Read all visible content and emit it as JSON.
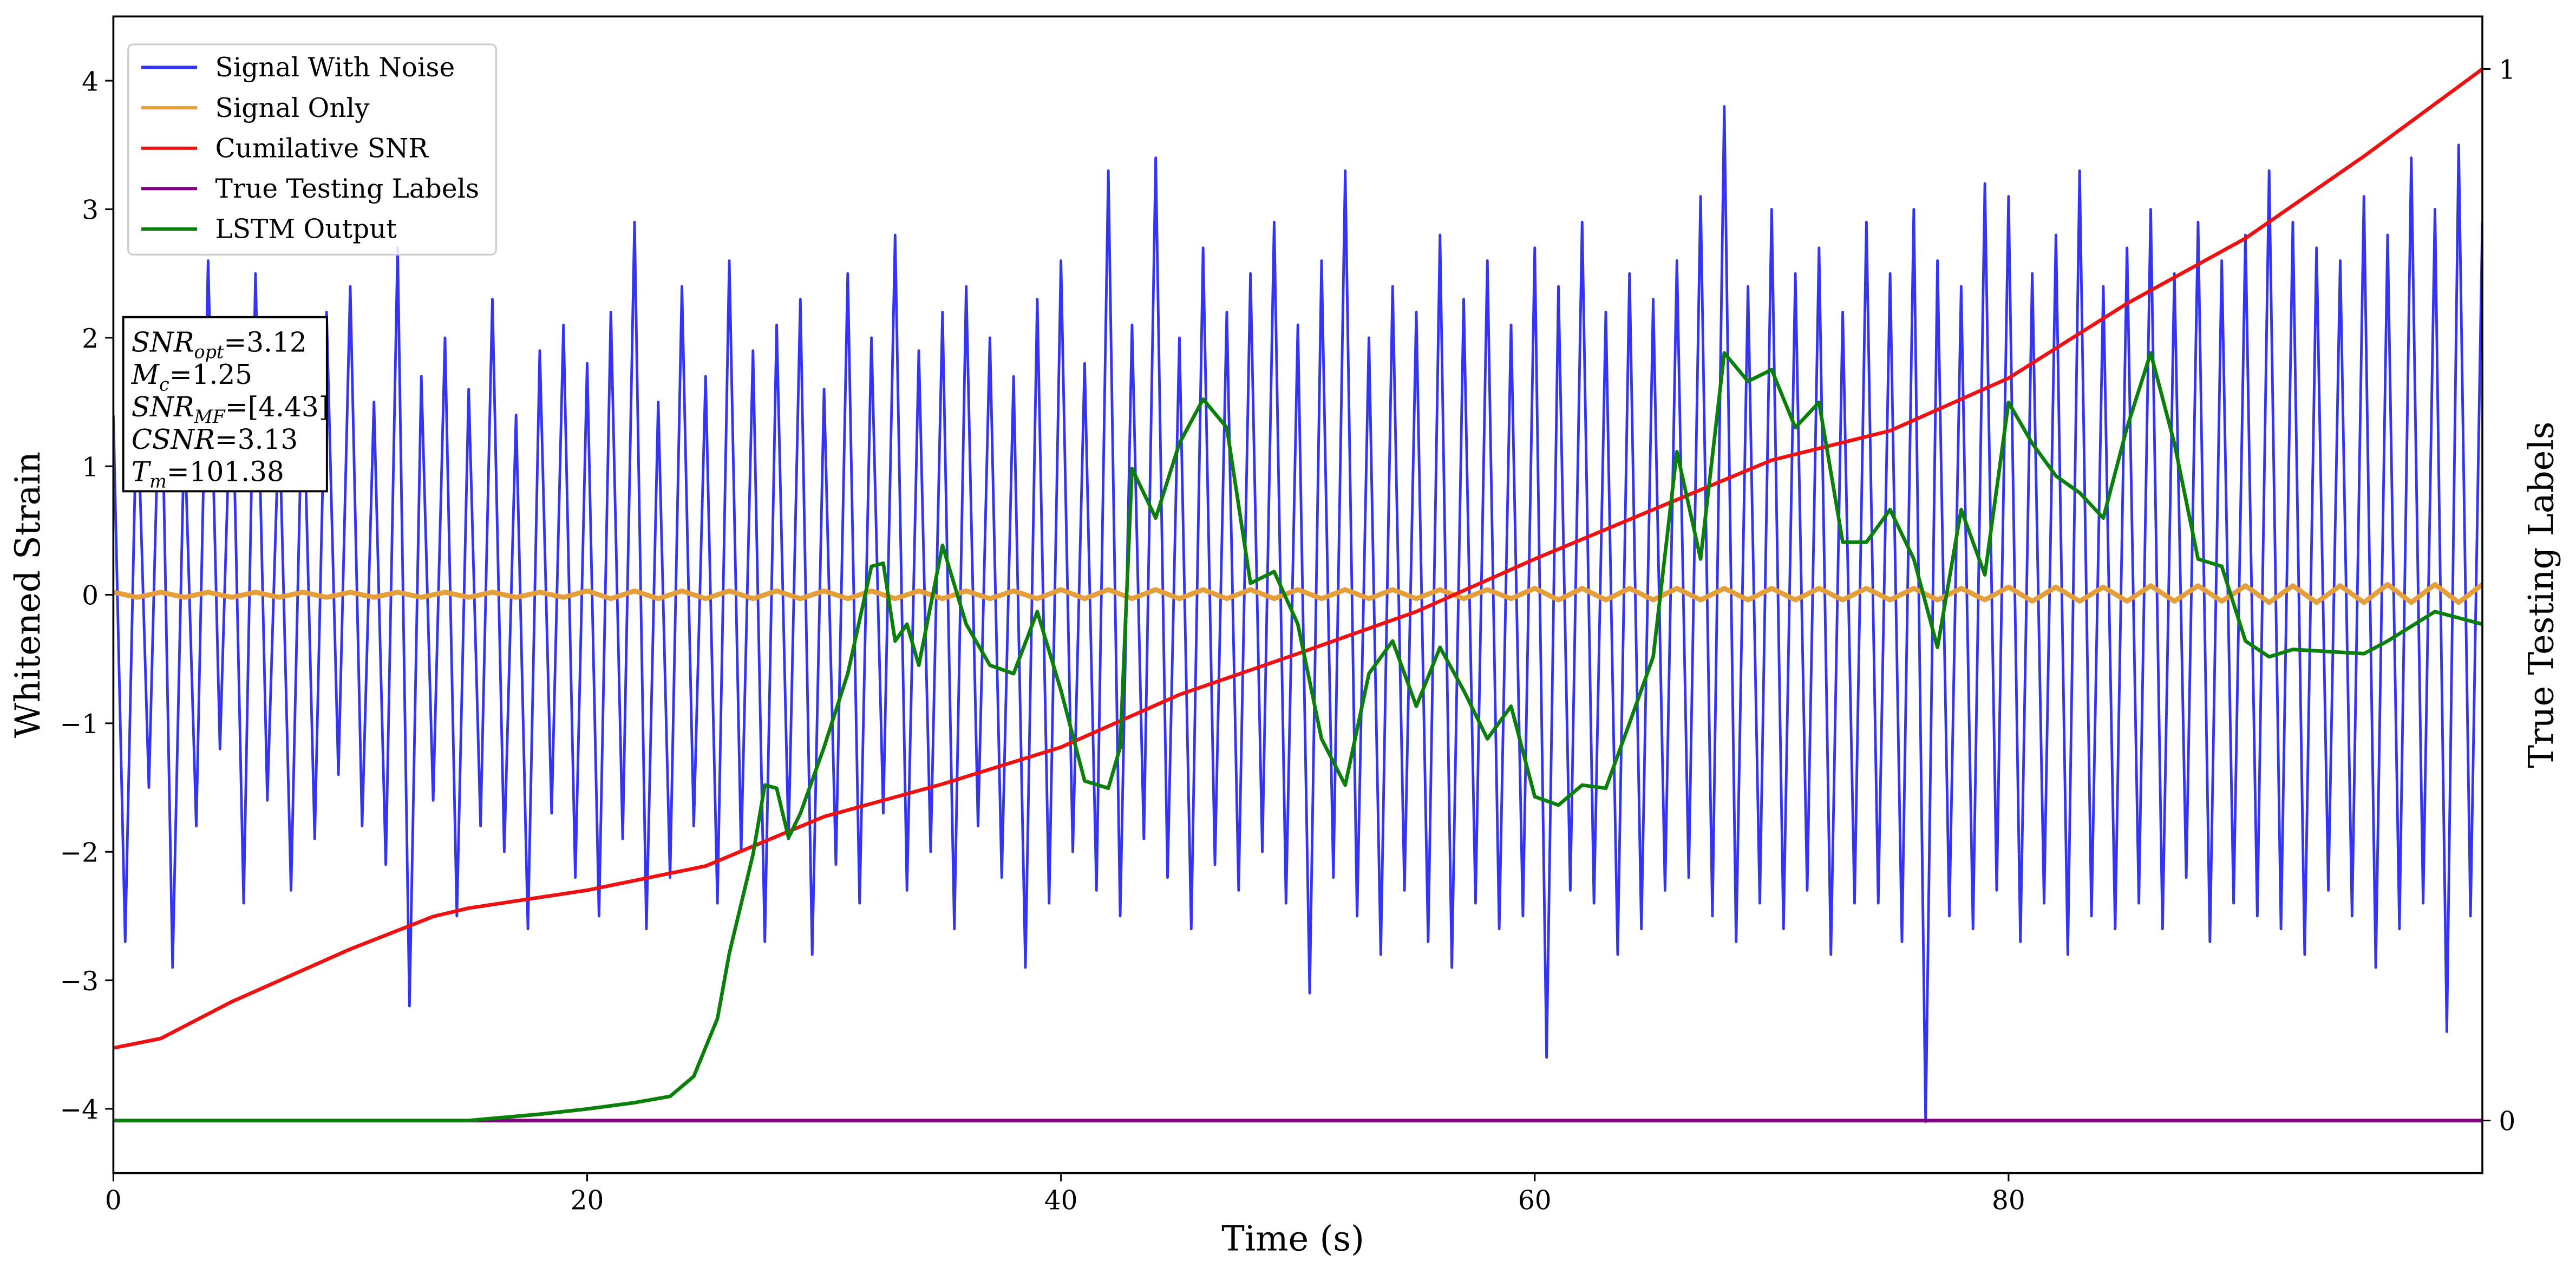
{
  "chart_data": {
    "type": "line",
    "xlabel": "Time (s)",
    "ylabel": "Whitened Strain",
    "y2label": "True Testing Labels",
    "xlim": [
      0,
      100
    ],
    "xticks": [
      0,
      20,
      40,
      60,
      80
    ],
    "ylim": [
      -4.5,
      4.5
    ],
    "yticks": [
      {
        "value": -4,
        "label": "−4"
      },
      {
        "value": -3,
        "label": "−3"
      },
      {
        "value": -2,
        "label": "−2"
      },
      {
        "value": -1,
        "label": "−1"
      },
      0,
      1,
      2,
      3,
      4
    ],
    "y2lim": [
      -0.05,
      1.05
    ],
    "y2ticks": [
      0,
      1
    ],
    "legend": "upper left",
    "annotation": {
      "lines": [
        [
          "SNR",
          "opt",
          "=3.12"
        ],
        [
          "M",
          "c",
          "=1.25"
        ],
        [
          "SNR",
          "MF",
          "=[4.43]"
        ],
        [
          "CSNR",
          "",
          "=3.13"
        ],
        [
          "T",
          "m",
          "=101.38"
        ]
      ]
    },
    "series": [
      {
        "name": "Signal With Noise",
        "color": "#3434f4",
        "width": 1.6,
        "x": [
          0,
          0.5,
          1,
          1.5,
          2,
          2.5,
          3,
          3.5,
          4,
          4.5,
          5,
          5.5,
          6,
          6.5,
          7,
          7.5,
          8,
          8.5,
          9,
          9.5,
          10,
          10.5,
          11,
          11.5,
          12,
          12.5,
          13,
          13.5,
          14,
          14.5,
          15,
          15.5,
          16,
          16.5,
          17,
          17.5,
          18,
          18.5,
          19,
          19.5,
          20,
          20.5,
          21,
          21.5,
          22,
          22.5,
          23,
          23.5,
          24,
          24.5,
          25,
          25.5,
          26,
          26.5,
          27,
          27.5,
          28,
          28.5,
          29,
          29.5,
          30,
          30.5,
          31,
          31.5,
          32,
          32.5,
          33,
          33.5,
          34,
          34.5,
          35,
          35.5,
          36,
          36.5,
          37,
          37.5,
          38,
          38.5,
          39,
          39.5,
          40,
          40.5,
          41,
          41.5,
          42,
          42.5,
          43,
          43.5,
          44,
          44.5,
          45,
          45.5,
          46,
          46.5,
          47,
          47.5,
          48,
          48.5,
          49,
          49.5,
          50,
          50.5,
          51,
          51.5,
          52,
          52.5,
          53,
          53.5,
          54,
          54.5,
          55,
          55.5,
          56,
          56.5,
          57,
          57.5,
          58,
          58.5,
          59,
          59.5,
          60,
          60.5,
          61,
          61.5,
          62,
          62.5,
          63,
          63.5,
          64,
          64.5,
          65,
          65.5,
          66,
          66.5,
          67,
          67.5,
          68,
          68.5,
          69,
          69.5,
          70,
          70.5,
          71,
          71.5,
          72,
          72.5,
          73,
          73.5,
          74,
          74.5,
          75,
          75.5,
          76,
          76.5,
          77,
          77.5,
          78,
          78.5,
          79,
          79.5,
          80,
          80.5,
          81,
          81.5,
          82,
          82.5,
          83,
          83.5,
          84,
          84.5,
          85,
          85.5,
          86,
          86.5,
          87,
          87.5,
          88,
          88.5,
          89,
          89.5,
          90,
          90.5,
          91,
          91.5,
          92,
          92.5,
          93,
          93.5,
          94,
          94.5,
          95,
          95.5,
          96,
          96.5,
          97,
          97.5,
          98,
          98.5,
          99,
          99.5,
          100
        ],
        "values": [
          1.4,
          -2.7,
          1.6,
          -1.5,
          2.1,
          -2.9,
          1.3,
          -1.8,
          2.6,
          -1.2,
          1.9,
          -2.4,
          2.5,
          -1.6,
          1.4,
          -2.3,
          1.8,
          -1.9,
          2.2,
          -1.4,
          2.4,
          -1.8,
          1.5,
          -2.1,
          2.7,
          -3.2,
          1.7,
          -1.6,
          2.0,
          -2.5,
          1.6,
          -1.8,
          2.3,
          -2.0,
          1.4,
          -2.6,
          1.9,
          -1.7,
          2.1,
          -2.2,
          1.8,
          -2.5,
          2.2,
          -1.9,
          2.9,
          -2.6,
          1.5,
          -2.2,
          2.4,
          -1.8,
          1.7,
          -2.4,
          2.6,
          -2.0,
          1.9,
          -2.7,
          2.1,
          -1.9,
          2.3,
          -2.8,
          1.6,
          -2.1,
          2.5,
          -2.4,
          2.0,
          -1.7,
          2.8,
          -2.3,
          1.9,
          -2.0,
          2.2,
          -2.6,
          2.4,
          -1.8,
          2.0,
          -2.2,
          1.7,
          -2.9,
          2.3,
          -2.4,
          2.6,
          -2.0,
          1.8,
          -2.3,
          3.3,
          -2.5,
          2.1,
          -1.9,
          3.4,
          -2.2,
          2.0,
          -2.6,
          2.7,
          -2.1,
          2.2,
          -2.3,
          2.5,
          -2.0,
          2.9,
          -2.4,
          2.1,
          -3.1,
          2.6,
          -2.2,
          3.3,
          -2.5,
          2.0,
          -2.8,
          2.4,
          -2.3,
          2.2,
          -2.7,
          2.8,
          -2.9,
          2.3,
          -2.4,
          2.6,
          -2.6,
          2.1,
          -2.5,
          2.7,
          -3.6,
          2.4,
          -2.3,
          2.9,
          -2.4,
          2.2,
          -2.8,
          2.5,
          -2.6,
          2.3,
          -2.3,
          2.6,
          -2.2,
          3.1,
          -2.5,
          3.8,
          -2.7,
          2.4,
          -2.4,
          3.0,
          -2.6,
          2.5,
          -2.3,
          2.7,
          -2.8,
          2.2,
          -2.4,
          2.9,
          -2.4,
          2.5,
          -2.7,
          3.0,
          -4.1,
          2.6,
          -2.5,
          2.4,
          -2.6,
          3.2,
          -2.3,
          3.1,
          -2.7,
          2.5,
          -2.4,
          2.8,
          -2.8,
          3.3,
          -2.5,
          2.4,
          -2.6,
          2.7,
          -2.4,
          3.0,
          -2.6,
          2.5,
          -2.2,
          2.9,
          -2.7,
          2.6,
          -2.4,
          2.8,
          -2.5,
          3.3,
          -2.6,
          2.9,
          -2.8,
          2.7,
          -2.3,
          2.6,
          -2.5,
          3.1,
          -2.9,
          2.8,
          -2.6,
          3.4,
          -2.4,
          3.0,
          -3.4,
          3.5,
          -2.5,
          2.9
        ]
      },
      {
        "name": "Signal Only",
        "color": "#e59f3a",
        "width": 3,
        "x": [
          0,
          1,
          2,
          3,
          4,
          5,
          6,
          7,
          8,
          9,
          10,
          11,
          12,
          13,
          14,
          15,
          16,
          17,
          18,
          19,
          20,
          21,
          22,
          23,
          24,
          25,
          26,
          27,
          28,
          29,
          30,
          31,
          32,
          33,
          34,
          35,
          36,
          37,
          38,
          39,
          40,
          41,
          42,
          43,
          44,
          45,
          46,
          47,
          48,
          49,
          50,
          51,
          52,
          53,
          54,
          55,
          56,
          57,
          58,
          59,
          60,
          61,
          62,
          63,
          64,
          65,
          66,
          67,
          68,
          69,
          70,
          71,
          72,
          73,
          74,
          75,
          76,
          77,
          78,
          79,
          80,
          81,
          82,
          83,
          84,
          85,
          86,
          87,
          88,
          89,
          90,
          91,
          92,
          93,
          94,
          95,
          96,
          97,
          98,
          99,
          100
        ],
        "values": [
          0.02,
          -0.02,
          0.02,
          -0.02,
          0.02,
          -0.02,
          0.02,
          -0.02,
          0.02,
          -0.02,
          0.02,
          -0.02,
          0.02,
          -0.02,
          0.02,
          -0.02,
          0.02,
          -0.02,
          0.02,
          -0.02,
          0.03,
          -0.03,
          0.03,
          -0.03,
          0.03,
          -0.03,
          0.03,
          -0.03,
          0.03,
          -0.03,
          0.03,
          -0.03,
          0.03,
          -0.03,
          0.03,
          -0.03,
          0.03,
          -0.03,
          0.03,
          -0.03,
          0.04,
          -0.03,
          0.04,
          -0.03,
          0.04,
          -0.03,
          0.04,
          -0.03,
          0.04,
          -0.03,
          0.04,
          -0.03,
          0.04,
          -0.03,
          0.04,
          -0.03,
          0.04,
          -0.03,
          0.04,
          -0.03,
          0.05,
          -0.04,
          0.05,
          -0.04,
          0.05,
          -0.04,
          0.05,
          -0.04,
          0.05,
          -0.04,
          0.05,
          -0.04,
          0.05,
          -0.04,
          0.05,
          -0.04,
          0.05,
          -0.04,
          0.05,
          -0.04,
          0.06,
          -0.05,
          0.06,
          -0.05,
          0.06,
          -0.05,
          0.07,
          -0.05,
          0.07,
          -0.05,
          0.07,
          -0.06,
          0.07,
          -0.06,
          0.07,
          -0.06,
          0.08,
          -0.06,
          0.08,
          -0.06,
          0.08
        ]
      },
      {
        "name": "Cumilative SNR",
        "color": "#ee1111",
        "width": 2.2,
        "axis": "y2",
        "x": [
          0,
          2,
          5,
          10,
          13.5,
          15,
          20,
          25,
          30,
          35,
          40,
          45,
          50,
          55,
          60,
          65,
          70,
          75,
          80,
          85,
          90,
          95,
          100
        ],
        "values": [
          0.069,
          0.078,
          0.113,
          0.163,
          0.194,
          0.202,
          0.219,
          0.242,
          0.289,
          0.32,
          0.355,
          0.405,
          0.444,
          0.484,
          0.534,
          0.581,
          0.628,
          0.656,
          0.706,
          0.777,
          0.839,
          0.917,
          1.0
        ]
      },
      {
        "name": "True Testing Labels",
        "color": "#800080",
        "width": 2.2,
        "axis": "y2",
        "x": [
          0,
          100
        ],
        "values": [
          0,
          0
        ]
      },
      {
        "name": "LSTM Output",
        "color": "#0a800a",
        "width": 2.2,
        "axis": "y2",
        "x": [
          0,
          15,
          18,
          20,
          22,
          23.5,
          24.5,
          25.5,
          26,
          27,
          27.5,
          28,
          28.5,
          29,
          30,
          31,
          32,
          32.5,
          33,
          33.5,
          34,
          35,
          36,
          37,
          38,
          39,
          40,
          41,
          42,
          42.5,
          43,
          44,
          45,
          46,
          47,
          48,
          49,
          50,
          51,
          52,
          53,
          54,
          55,
          56,
          57,
          58,
          59,
          60,
          61,
          62,
          63,
          64,
          65,
          66,
          67,
          68,
          69,
          70,
          71,
          72,
          73,
          74,
          75,
          76,
          77,
          78,
          79,
          80,
          81,
          82,
          83,
          84,
          85,
          86,
          87,
          88,
          89,
          90,
          91,
          92,
          95,
          96,
          98,
          100
        ],
        "values": [
          0,
          0,
          0.006,
          0.011,
          0.017,
          0.023,
          0.042,
          0.097,
          0.159,
          0.253,
          0.319,
          0.316,
          0.269,
          0.292,
          0.355,
          0.425,
          0.527,
          0.53,
          0.456,
          0.472,
          0.433,
          0.547,
          0.472,
          0.433,
          0.425,
          0.484,
          0.409,
          0.323,
          0.316,
          0.355,
          0.62,
          0.573,
          0.644,
          0.686,
          0.659,
          0.511,
          0.522,
          0.472,
          0.363,
          0.319,
          0.425,
          0.456,
          0.394,
          0.45,
          0.409,
          0.363,
          0.394,
          0.308,
          0.3,
          0.319,
          0.316,
          0.378,
          0.441,
          0.636,
          0.534,
          0.73,
          0.703,
          0.714,
          0.659,
          0.683,
          0.55,
          0.55,
          0.581,
          0.534,
          0.45,
          0.581,
          0.519,
          0.683,
          0.644,
          0.613,
          0.597,
          0.573,
          0.659,
          0.73,
          0.644,
          0.534,
          0.527,
          0.456,
          0.441,
          0.448,
          0.444,
          0.456,
          0.484,
          0.472
        ]
      }
    ]
  }
}
